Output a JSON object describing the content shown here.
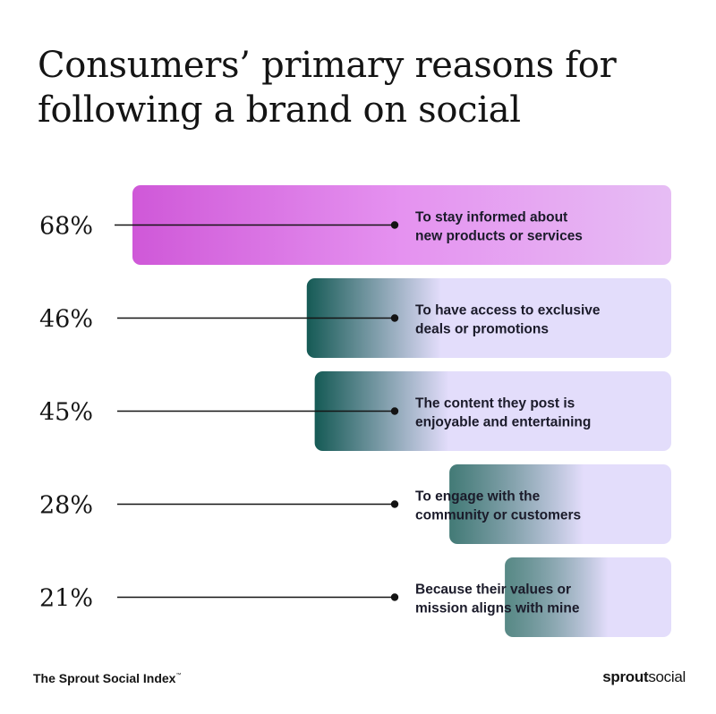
{
  "title_lines": [
    "Consumers’ primary reasons for",
    "following a brand on social"
  ],
  "footer": {
    "source": "The Sprout Social Index",
    "tm": "™"
  },
  "logo": {
    "bold": "sprout",
    "light": "social"
  },
  "colors": {
    "highlight_start": "#cf58d8",
    "highlight_mid": "#e592f0",
    "highlight_end": "#e6bdf4",
    "teal": "#155a55",
    "lavender": "#e3ddfb"
  },
  "chart_data": {
    "type": "bar",
    "orientation": "horizontal",
    "title": "Consumers’ primary reasons for following a brand on social",
    "categories": [
      "To stay informed about new products or services",
      "To have access to exclusive deals or promotions",
      "The content they post is enjoyable and entertaining",
      "To engage with the community or customers",
      "Because their values or mission aligns with mine"
    ],
    "category_lines": [
      [
        "To stay informed about",
        "new products or services"
      ],
      [
        "To have access to exclusive",
        "deals or promotions"
      ],
      [
        "The content they post is",
        "enjoyable and entertaining"
      ],
      [
        "To engage with the",
        "community or customers"
      ],
      [
        "Because their values or",
        "mission aligns with mine"
      ]
    ],
    "values": [
      68,
      46,
      45,
      28,
      21
    ],
    "value_labels": [
      "68%",
      "46%",
      "45%",
      "28%",
      "21%"
    ],
    "unit": "%",
    "xlim": [
      0,
      100
    ],
    "grid": false,
    "legend": "none",
    "highlighted_index": 0
  }
}
